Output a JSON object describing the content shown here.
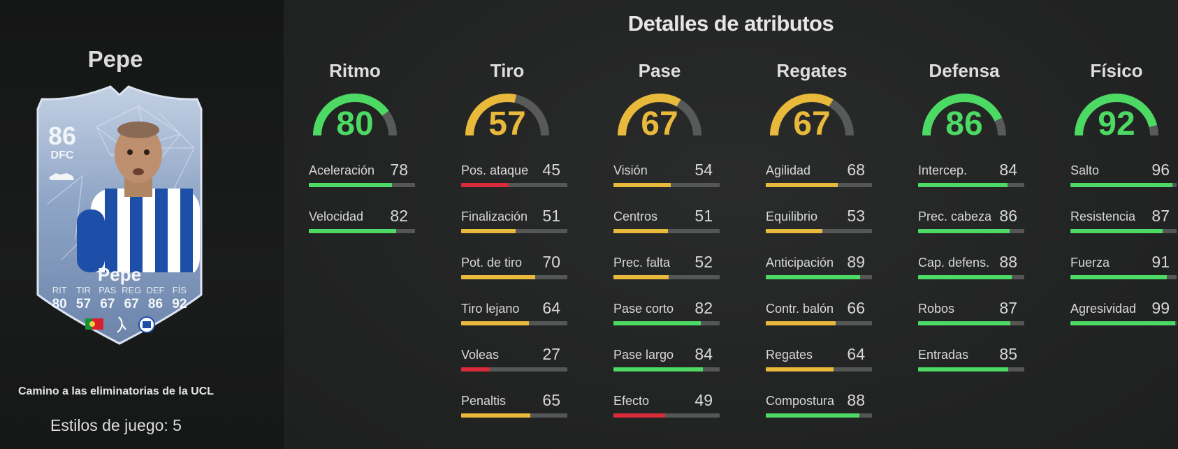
{
  "colors": {
    "green": "#4cd964",
    "yellow": "#e8b93a",
    "red": "#d92b3a",
    "gauge_track": "#585a59"
  },
  "player": {
    "name": "Pepe",
    "card": {
      "rating": "86",
      "position": "DFC",
      "name": "Pepe",
      "stat_labels": [
        "RIT",
        "TIR",
        "PAS",
        "REG",
        "DEF",
        "FÍS"
      ],
      "stat_values": [
        "80",
        "57",
        "67",
        "67",
        "86",
        "92"
      ]
    },
    "subtitle": "Camino a las eliminatorias de la UCL",
    "playstyles": "Estilos de juego: 5"
  },
  "main": {
    "title": "Detalles de atributos"
  },
  "categories": [
    {
      "name": "Ritmo",
      "value": 80,
      "color": "#4cd964",
      "attributes": [
        {
          "name": "Aceleración",
          "value": 78,
          "color": "#4cd964"
        },
        {
          "name": "Velocidad",
          "value": 82,
          "color": "#4cd964"
        }
      ]
    },
    {
      "name": "Tiro",
      "value": 57,
      "color": "#e8b93a",
      "attributes": [
        {
          "name": "Pos. ataque",
          "value": 45,
          "color": "#d92b3a"
        },
        {
          "name": "Finalización",
          "value": 51,
          "color": "#e8b93a"
        },
        {
          "name": "Pot. de tiro",
          "value": 70,
          "color": "#e8b93a"
        },
        {
          "name": "Tiro lejano",
          "value": 64,
          "color": "#e8b93a"
        },
        {
          "name": "Voleas",
          "value": 27,
          "color": "#d92b3a"
        },
        {
          "name": "Penaltis",
          "value": 65,
          "color": "#e8b93a"
        }
      ]
    },
    {
      "name": "Pase",
      "value": 67,
      "color": "#e8b93a",
      "attributes": [
        {
          "name": "Visión",
          "value": 54,
          "color": "#e8b93a"
        },
        {
          "name": "Centros",
          "value": 51,
          "color": "#e8b93a"
        },
        {
          "name": "Prec. falta",
          "value": 52,
          "color": "#e8b93a"
        },
        {
          "name": "Pase corto",
          "value": 82,
          "color": "#4cd964"
        },
        {
          "name": "Pase largo",
          "value": 84,
          "color": "#4cd964"
        },
        {
          "name": "Efecto",
          "value": 49,
          "color": "#d92b3a"
        }
      ]
    },
    {
      "name": "Regates",
      "value": 67,
      "color": "#e8b93a",
      "attributes": [
        {
          "name": "Agilidad",
          "value": 68,
          "color": "#e8b93a"
        },
        {
          "name": "Equilibrio",
          "value": 53,
          "color": "#e8b93a"
        },
        {
          "name": "Anticipación",
          "value": 89,
          "color": "#4cd964"
        },
        {
          "name": "Contr. balón",
          "value": 66,
          "color": "#e8b93a"
        },
        {
          "name": "Regates",
          "value": 64,
          "color": "#e8b93a"
        },
        {
          "name": "Compostura",
          "value": 88,
          "color": "#4cd964"
        }
      ]
    },
    {
      "name": "Defensa",
      "value": 86,
      "color": "#4cd964",
      "attributes": [
        {
          "name": "Intercep.",
          "value": 84,
          "color": "#4cd964"
        },
        {
          "name": "Prec. cabeza",
          "value": 86,
          "color": "#4cd964"
        },
        {
          "name": "Cap. defens.",
          "value": 88,
          "color": "#4cd964"
        },
        {
          "name": "Robos",
          "value": 87,
          "color": "#4cd964"
        },
        {
          "name": "Entradas",
          "value": 85,
          "color": "#4cd964"
        }
      ]
    },
    {
      "name": "Físico",
      "value": 92,
      "color": "#4cd964",
      "attributes": [
        {
          "name": "Salto",
          "value": 96,
          "color": "#4cd964"
        },
        {
          "name": "Resistencia",
          "value": 87,
          "color": "#4cd964"
        },
        {
          "name": "Fuerza",
          "value": 91,
          "color": "#4cd964"
        },
        {
          "name": "Agresividad",
          "value": 99,
          "color": "#4cd964"
        }
      ]
    }
  ]
}
